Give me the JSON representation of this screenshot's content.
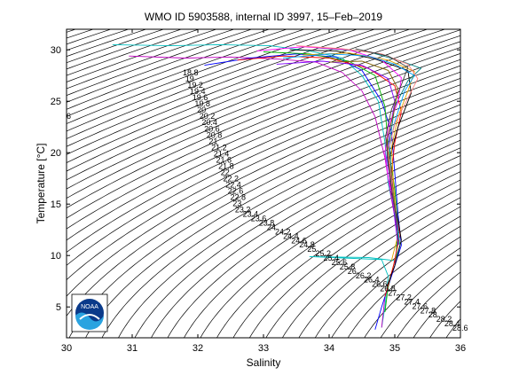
{
  "chart_data": {
    "type": "line",
    "title": "WMO ID 5903588, internal ID 3997, 15–Feb–2019",
    "xlabel": "Salinity",
    "ylabel": "Temperature [°C]",
    "xlim": [
      30,
      36
    ],
    "ylim": [
      2,
      32
    ],
    "x_ticks": [
      "30",
      "31",
      "32",
      "33",
      "34",
      "35",
      "36"
    ],
    "y_ticks": [
      "5",
      "10",
      "15",
      "20",
      "25",
      "30"
    ],
    "grid": false,
    "legend": "none",
    "logo": "NOAA",
    "isopycnal_labels": [
      "6",
      "18.8",
      "19",
      "19.2",
      "19.4",
      "19.6",
      "19.8",
      "20",
      "20.2",
      "20.4",
      "20.6",
      "20.8",
      "21",
      "21.2",
      "21.4",
      "21.6",
      "21.8",
      "22",
      "22.2",
      "22.4",
      "22.6",
      "22.8",
      "23",
      "23.2",
      "23.4",
      "23.6",
      "23.8",
      "24",
      "24.2",
      "24.4",
      "24.6",
      "24.8",
      "25",
      "25.2",
      "25.4",
      "25.6",
      "25.8",
      "26",
      "26.2",
      "26.4",
      "26.6",
      "26.8",
      "27",
      "27.2",
      "27.4",
      "27.6",
      "27.8",
      "28",
      "28.2",
      "28.4",
      "28.6"
    ],
    "series": [
      {
        "color": "#00c0c0",
        "values": [
          [
            30.7,
            30.5
          ],
          [
            31.6,
            30.4
          ],
          [
            32.3,
            30.5
          ],
          [
            33.1,
            30.4
          ],
          [
            33.7,
            29.9
          ],
          [
            34.2,
            29.2
          ],
          [
            34.5,
            27.5
          ],
          [
            34.75,
            25
          ],
          [
            34.85,
            21
          ],
          [
            34.9,
            17
          ],
          [
            35.0,
            14
          ],
          [
            35.08,
            11
          ],
          [
            35.0,
            9.5
          ],
          [
            34.6,
            9.8
          ],
          [
            33.7,
            9.9
          ],
          [
            34.8,
            9.6
          ],
          [
            34.9,
            8
          ],
          [
            34.85,
            5
          ],
          [
            34.8,
            3
          ]
        ]
      },
      {
        "color": "#c000c0",
        "values": [
          [
            30.95,
            29.4
          ],
          [
            31.8,
            29.2
          ],
          [
            32.5,
            29.3
          ],
          [
            33.2,
            29.1
          ],
          [
            33.8,
            28.8
          ],
          [
            34.2,
            27.8
          ],
          [
            34.5,
            26.0
          ],
          [
            34.7,
            23.5
          ],
          [
            34.85,
            19.5
          ],
          [
            34.95,
            15.5
          ],
          [
            35.05,
            12
          ],
          [
            35.0,
            9
          ],
          [
            34.85,
            6
          ],
          [
            34.8,
            3
          ]
        ]
      },
      {
        "color": "#0000ff",
        "values": [
          [
            32.1,
            28.5
          ],
          [
            32.8,
            29.2
          ],
          [
            33.5,
            29.6
          ],
          [
            34.1,
            29.3
          ],
          [
            34.5,
            28
          ],
          [
            34.8,
            25
          ],
          [
            34.95,
            22
          ],
          [
            35.0,
            18
          ],
          [
            35.05,
            14
          ],
          [
            35.1,
            11
          ],
          [
            34.95,
            8
          ],
          [
            34.8,
            5
          ],
          [
            34.7,
            2.8
          ]
        ]
      },
      {
        "color": "#00b000",
        "values": [
          [
            33.0,
            29.8
          ],
          [
            33.7,
            29.6
          ],
          [
            34.3,
            28.9
          ],
          [
            34.7,
            27.5
          ],
          [
            34.85,
            24.5
          ],
          [
            34.9,
            20.5
          ],
          [
            35.0,
            16.5
          ],
          [
            35.05,
            13
          ],
          [
            35.02,
            10
          ],
          [
            34.9,
            7
          ],
          [
            34.85,
            4.5
          ]
        ]
      },
      {
        "color": "#ff0000",
        "values": [
          [
            32.6,
            29.0
          ],
          [
            33.3,
            29.4
          ],
          [
            34.0,
            29.2
          ],
          [
            34.6,
            28.2
          ],
          [
            35.0,
            26.5
          ],
          [
            35.1,
            24
          ],
          [
            35.0,
            21
          ],
          [
            34.95,
            18
          ],
          [
            35.0,
            14.5
          ],
          [
            35.08,
            12
          ],
          [
            34.98,
            9
          ],
          [
            34.85,
            6
          ]
        ]
      },
      {
        "color": "#000000",
        "values": [
          [
            33.4,
            30.0
          ],
          [
            34.1,
            29.9
          ],
          [
            34.7,
            29.1
          ],
          [
            35.2,
            28.0
          ],
          [
            35.25,
            25.8
          ],
          [
            35.05,
            22.5
          ],
          [
            34.9,
            19
          ],
          [
            34.95,
            16
          ],
          [
            35.05,
            13.5
          ],
          [
            35.1,
            11.5
          ],
          [
            35.0,
            9
          ],
          [
            34.88,
            7
          ]
        ]
      },
      {
        "color": "#e0a000",
        "values": [
          [
            33.6,
            29.5
          ],
          [
            34.3,
            29.7
          ],
          [
            34.9,
            29.0
          ],
          [
            35.3,
            27.9
          ],
          [
            35.2,
            26
          ],
          [
            35.05,
            23.5
          ],
          [
            34.95,
            20.5
          ],
          [
            34.98,
            17
          ],
          [
            35.02,
            14
          ],
          [
            35.05,
            12
          ],
          [
            34.95,
            9.5
          ]
        ]
      },
      {
        "color": "#8000ff",
        "values": [
          [
            33.2,
            28.6
          ],
          [
            33.9,
            28.9
          ],
          [
            34.5,
            28.5
          ],
          [
            34.9,
            27.2
          ],
          [
            35.0,
            25
          ],
          [
            34.92,
            22
          ],
          [
            34.88,
            19.5
          ],
          [
            34.95,
            16.5
          ],
          [
            35.0,
            13.5
          ],
          [
            35.05,
            11
          ]
        ]
      },
      {
        "color": "#008080",
        "values": [
          [
            33.8,
            30.2
          ],
          [
            34.6,
            29.8
          ],
          [
            35.1,
            28.9
          ],
          [
            35.4,
            28.2
          ],
          [
            35.2,
            27
          ],
          [
            35.0,
            24.5
          ],
          [
            34.92,
            21
          ],
          [
            34.95,
            17.5
          ],
          [
            35.0,
            14.8
          ],
          [
            35.06,
            12.2
          ]
        ]
      },
      {
        "color": "#ff00ff",
        "values": [
          [
            32.9,
            29.9
          ],
          [
            33.6,
            30.3
          ],
          [
            34.3,
            30.0
          ],
          [
            34.8,
            29.0
          ],
          [
            35.1,
            27.3
          ],
          [
            35.05,
            25
          ],
          [
            34.9,
            22.5
          ],
          [
            34.85,
            20
          ],
          [
            34.9,
            17.5
          ],
          [
            35.0,
            15
          ],
          [
            35.05,
            12.5
          ]
        ]
      },
      {
        "color": "#00a0ff",
        "values": [
          [
            33.3,
            29.2
          ],
          [
            34.0,
            29.6
          ],
          [
            34.6,
            29.4
          ],
          [
            35.0,
            28.6
          ],
          [
            35.3,
            27.5
          ],
          [
            35.15,
            26
          ],
          [
            35.0,
            23
          ],
          [
            34.9,
            20
          ],
          [
            34.95,
            16.8
          ],
          [
            35.02,
            13.8
          ],
          [
            35.07,
            11.5
          ]
        ]
      },
      {
        "color": "#806000",
        "values": [
          [
            34.0,
            28.8
          ],
          [
            34.5,
            28.9
          ],
          [
            34.9,
            28.0
          ],
          [
            35.05,
            26.2
          ],
          [
            34.98,
            23.8
          ],
          [
            34.88,
            21.2
          ],
          [
            34.92,
            18.5
          ],
          [
            34.98,
            15.8
          ],
          [
            35.03,
            13.2
          ]
        ]
      },
      {
        "color": "#ff8080",
        "values": [
          [
            33.5,
            30.4
          ],
          [
            34.2,
            30.1
          ],
          [
            34.8,
            29.6
          ],
          [
            35.2,
            28.6
          ],
          [
            35.35,
            27.2
          ],
          [
            35.2,
            25.3
          ],
          [
            35.0,
            22.8
          ],
          [
            34.9,
            20.2
          ],
          [
            34.95,
            17.2
          ],
          [
            35.0,
            14.2
          ]
        ]
      },
      {
        "color": "#404040",
        "values": [
          [
            34.4,
            30.1
          ],
          [
            34.9,
            29.4
          ],
          [
            35.2,
            28.3
          ],
          [
            35.1,
            26.6
          ],
          [
            34.95,
            24.2
          ],
          [
            34.86,
            21.6
          ],
          [
            34.9,
            19
          ],
          [
            34.96,
            16.2
          ],
          [
            35.02,
            13.6
          ],
          [
            35.06,
            11.2
          ]
        ]
      }
    ]
  }
}
